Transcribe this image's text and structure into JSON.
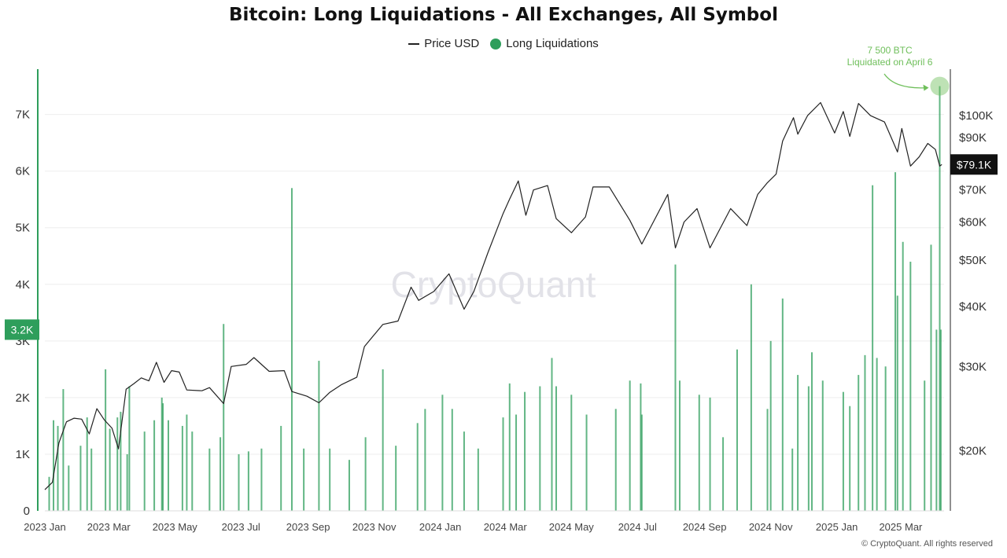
{
  "chart_data": {
    "type": "bar",
    "title": "Bitcoin: Long Liquidations - All Exchanges, All Symbol",
    "legend": {
      "placement": "top-center",
      "items": [
        {
          "name": "Price USD",
          "marker": "line",
          "color": "#222222"
        },
        {
          "name": "Long Liquidations",
          "marker": "dot",
          "color": "#2e9e5b"
        }
      ]
    },
    "x_axis": {
      "type": "date",
      "range": [
        "2023-01-01",
        "2025-04-10"
      ],
      "ticks": [
        {
          "date": "2023-01-01",
          "label": "2023 Jan"
        },
        {
          "date": "2023-03-01",
          "label": "2023 Mar"
        },
        {
          "date": "2023-05-01",
          "label": "2023 May"
        },
        {
          "date": "2023-07-01",
          "label": "2023 Jul"
        },
        {
          "date": "2023-09-01",
          "label": "2023 Sep"
        },
        {
          "date": "2023-11-01",
          "label": "2023 Nov"
        },
        {
          "date": "2024-01-01",
          "label": "2024 Jan"
        },
        {
          "date": "2024-03-01",
          "label": "2024 Mar"
        },
        {
          "date": "2024-05-01",
          "label": "2024 May"
        },
        {
          "date": "2024-07-01",
          "label": "2024 Jul"
        },
        {
          "date": "2024-09-01",
          "label": "2024 Sep"
        },
        {
          "date": "2024-11-01",
          "label": "2024 Nov"
        },
        {
          "date": "2025-01-01",
          "label": "2025 Jan"
        },
        {
          "date": "2025-03-01",
          "label": "2025 Mar"
        }
      ]
    },
    "y_left": {
      "range": [
        0,
        7800
      ],
      "ticks": [
        {
          "value": 0,
          "label": "0"
        },
        {
          "value": 1000,
          "label": "1K"
        },
        {
          "value": 2000,
          "label": "2K"
        },
        {
          "value": 3000,
          "label": "3K"
        },
        {
          "value": 4000,
          "label": "4K"
        },
        {
          "value": 5000,
          "label": "5K"
        },
        {
          "value": 6000,
          "label": "6K"
        },
        {
          "value": 7000,
          "label": "7K"
        }
      ],
      "marker": {
        "value": 3200,
        "label": "3.2K",
        "color": "#2e9e5b"
      }
    },
    "y_right": {
      "scale": "log",
      "range": [
        15000,
        125000
      ],
      "ticks": [
        {
          "value": 20000,
          "label": "$20K"
        },
        {
          "value": 30000,
          "label": "$30K"
        },
        {
          "value": 40000,
          "label": "$40K"
        },
        {
          "value": 50000,
          "label": "$50K"
        },
        {
          "value": 60000,
          "label": "$60K"
        },
        {
          "value": 70000,
          "label": "$70K"
        },
        {
          "value": 90000,
          "label": "$90K"
        },
        {
          "value": 100000,
          "label": "$100K"
        }
      ],
      "marker": {
        "value": 79100,
        "label": "$79.1K",
        "color": "#111111"
      }
    },
    "grid": true,
    "watermark": "CryptoQuant",
    "annotation": {
      "line1": "7 500 BTC",
      "line2": "Liquidated on April 6",
      "date": "2025-04-06",
      "value": 7500,
      "color": "#6fbf5b"
    },
    "series": [
      {
        "name": "Long Liquidations",
        "kind": "bar",
        "axis": "left",
        "color": "#2e9e5b",
        "points": [
          [
            "2023-01-05",
            600
          ],
          [
            "2023-01-09",
            1600
          ],
          [
            "2023-01-13",
            1500
          ],
          [
            "2023-01-18",
            2150
          ],
          [
            "2023-01-23",
            800
          ],
          [
            "2023-02-03",
            1150
          ],
          [
            "2023-02-09",
            1650
          ],
          [
            "2023-02-13",
            1100
          ],
          [
            "2023-02-26",
            2500
          ],
          [
            "2023-03-02",
            1450
          ],
          [
            "2023-03-09",
            1650
          ],
          [
            "2023-03-12",
            1750
          ],
          [
            "2023-03-18",
            1000
          ],
          [
            "2023-03-20",
            2200
          ],
          [
            "2023-04-03",
            1400
          ],
          [
            "2023-04-12",
            1600
          ],
          [
            "2023-04-19",
            2000
          ],
          [
            "2023-04-20",
            1900
          ],
          [
            "2023-04-25",
            1600
          ],
          [
            "2023-05-08",
            1500
          ],
          [
            "2023-05-12",
            1700
          ],
          [
            "2023-05-17",
            1400
          ],
          [
            "2023-06-02",
            1100
          ],
          [
            "2023-06-12",
            1300
          ],
          [
            "2023-06-15",
            3300
          ],
          [
            "2023-06-29",
            1000
          ],
          [
            "2023-07-08",
            1050
          ],
          [
            "2023-07-20",
            1100
          ],
          [
            "2023-08-07",
            1500
          ],
          [
            "2023-08-17",
            5700
          ],
          [
            "2023-08-28",
            1100
          ],
          [
            "2023-09-11",
            2650
          ],
          [
            "2023-09-21",
            1100
          ],
          [
            "2023-10-09",
            900
          ],
          [
            "2023-10-24",
            1300
          ],
          [
            "2023-11-09",
            2500
          ],
          [
            "2023-11-21",
            1150
          ],
          [
            "2023-12-11",
            1550
          ],
          [
            "2023-12-18",
            1800
          ],
          [
            "2024-01-03",
            2050
          ],
          [
            "2024-01-12",
            1800
          ],
          [
            "2024-01-23",
            1400
          ],
          [
            "2024-02-05",
            1100
          ],
          [
            "2024-02-28",
            1650
          ],
          [
            "2024-03-05",
            2250
          ],
          [
            "2024-03-11",
            1700
          ],
          [
            "2024-03-19",
            2100
          ],
          [
            "2024-04-02",
            2200
          ],
          [
            "2024-04-13",
            2700
          ],
          [
            "2024-04-17",
            2200
          ],
          [
            "2024-05-01",
            2050
          ],
          [
            "2024-05-15",
            1700
          ],
          [
            "2024-06-11",
            1800
          ],
          [
            "2024-06-24",
            2300
          ],
          [
            "2024-07-04",
            2250
          ],
          [
            "2024-07-05",
            1700
          ],
          [
            "2024-08-05",
            4350
          ],
          [
            "2024-08-09",
            2300
          ],
          [
            "2024-08-27",
            2050
          ],
          [
            "2024-09-06",
            2000
          ],
          [
            "2024-09-18",
            1300
          ],
          [
            "2024-10-01",
            2850
          ],
          [
            "2024-10-14",
            4000
          ],
          [
            "2024-10-29",
            1800
          ],
          [
            "2024-11-01",
            3000
          ],
          [
            "2024-11-12",
            3750
          ],
          [
            "2024-11-21",
            1100
          ],
          [
            "2024-11-26",
            2400
          ],
          [
            "2024-12-06",
            2200
          ],
          [
            "2024-12-09",
            2800
          ],
          [
            "2024-12-19",
            2300
          ],
          [
            "2025-01-07",
            2100
          ],
          [
            "2025-01-13",
            1850
          ],
          [
            "2025-01-21",
            2400
          ],
          [
            "2025-01-27",
            2750
          ],
          [
            "2025-02-03",
            5750
          ],
          [
            "2025-02-07",
            2700
          ],
          [
            "2025-02-15",
            2550
          ],
          [
            "2025-02-24",
            5980
          ],
          [
            "2025-02-26",
            3800
          ],
          [
            "2025-03-03",
            4750
          ],
          [
            "2025-03-10",
            4400
          ],
          [
            "2025-03-23",
            2300
          ],
          [
            "2025-03-29",
            4700
          ],
          [
            "2025-04-03",
            3200
          ],
          [
            "2025-04-06",
            7500
          ],
          [
            "2025-04-07",
            3200
          ]
        ]
      },
      {
        "name": "Price USD",
        "kind": "line",
        "axis": "right",
        "color": "#222222",
        "points": [
          [
            "2023-01-01",
            16600
          ],
          [
            "2023-01-08",
            17200
          ],
          [
            "2023-01-14",
            20800
          ],
          [
            "2023-01-21",
            23000
          ],
          [
            "2023-01-28",
            23400
          ],
          [
            "2023-02-04",
            23300
          ],
          [
            "2023-02-11",
            21700
          ],
          [
            "2023-02-18",
            24500
          ],
          [
            "2023-02-25",
            23200
          ],
          [
            "2023-03-04",
            22300
          ],
          [
            "2023-03-10",
            20200
          ],
          [
            "2023-03-17",
            26900
          ],
          [
            "2023-03-24",
            27600
          ],
          [
            "2023-03-31",
            28400
          ],
          [
            "2023-04-07",
            28000
          ],
          [
            "2023-04-14",
            30600
          ],
          [
            "2023-04-21",
            27800
          ],
          [
            "2023-04-28",
            29400
          ],
          [
            "2023-05-05",
            29200
          ],
          [
            "2023-05-12",
            26800
          ],
          [
            "2023-05-26",
            26700
          ],
          [
            "2023-06-02",
            27100
          ],
          [
            "2023-06-15",
            25100
          ],
          [
            "2023-06-22",
            30000
          ],
          [
            "2023-07-06",
            30300
          ],
          [
            "2023-07-13",
            31300
          ],
          [
            "2023-07-27",
            29300
          ],
          [
            "2023-08-10",
            29400
          ],
          [
            "2023-08-17",
            26600
          ],
          [
            "2023-08-31",
            26000
          ],
          [
            "2023-09-11",
            25200
          ],
          [
            "2023-09-21",
            26500
          ],
          [
            "2023-10-02",
            27500
          ],
          [
            "2023-10-16",
            28500
          ],
          [
            "2023-10-23",
            33000
          ],
          [
            "2023-10-30",
            34500
          ],
          [
            "2023-11-09",
            36700
          ],
          [
            "2023-11-23",
            37300
          ],
          [
            "2023-12-05",
            43900
          ],
          [
            "2023-12-12",
            41200
          ],
          [
            "2023-12-26",
            43000
          ],
          [
            "2024-01-09",
            46800
          ],
          [
            "2024-01-23",
            39500
          ],
          [
            "2024-02-01",
            43000
          ],
          [
            "2024-02-14",
            51800
          ],
          [
            "2024-02-28",
            62500
          ],
          [
            "2024-03-05",
            67000
          ],
          [
            "2024-03-13",
            73100
          ],
          [
            "2024-03-20",
            62000
          ],
          [
            "2024-03-27",
            70000
          ],
          [
            "2024-04-09",
            71500
          ],
          [
            "2024-04-17",
            61000
          ],
          [
            "2024-05-01",
            57000
          ],
          [
            "2024-05-14",
            61500
          ],
          [
            "2024-05-21",
            71000
          ],
          [
            "2024-06-05",
            71000
          ],
          [
            "2024-06-24",
            60500
          ],
          [
            "2024-07-05",
            54000
          ],
          [
            "2024-07-29",
            68500
          ],
          [
            "2024-08-05",
            53000
          ],
          [
            "2024-08-13",
            60000
          ],
          [
            "2024-08-25",
            64000
          ],
          [
            "2024-09-06",
            53000
          ],
          [
            "2024-09-25",
            64000
          ],
          [
            "2024-10-10",
            59000
          ],
          [
            "2024-10-20",
            68500
          ],
          [
            "2024-10-29",
            72500
          ],
          [
            "2024-11-06",
            75500
          ],
          [
            "2024-11-12",
            88500
          ],
          [
            "2024-11-22",
            99000
          ],
          [
            "2024-11-26",
            91500
          ],
          [
            "2024-12-05",
            100000
          ],
          [
            "2024-12-17",
            106500
          ],
          [
            "2024-12-30",
            92000
          ],
          [
            "2025-01-07",
            102000
          ],
          [
            "2025-01-13",
            90500
          ],
          [
            "2025-01-21",
            106000
          ],
          [
            "2025-02-01",
            100000
          ],
          [
            "2025-02-14",
            97000
          ],
          [
            "2025-02-26",
            84000
          ],
          [
            "2025-03-02",
            94000
          ],
          [
            "2025-03-10",
            78500
          ],
          [
            "2025-03-18",
            82000
          ],
          [
            "2025-03-26",
            87500
          ],
          [
            "2025-04-02",
            85000
          ],
          [
            "2025-04-06",
            78500
          ],
          [
            "2025-04-08",
            79100
          ]
        ]
      }
    ]
  },
  "footer": {
    "copyright": "© CryptoQuant. All rights reserved"
  }
}
